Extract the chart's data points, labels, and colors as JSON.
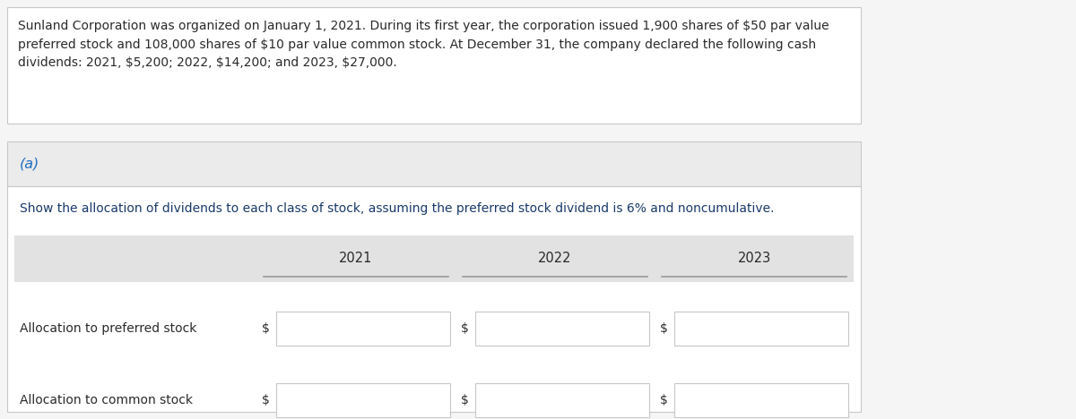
{
  "title_text": "Sunland Corporation was organized on January 1, 2021. During its first year, the corporation issued 1,900 shares of $50 par value\npreferred stock and 108,000 shares of $10 par value common stock. At December 31, the company declared the following cash\ndividends: 2021, $5,200; 2022, $14,200; and 2023, $27,000.",
  "part_label": "(a)",
  "instruction": "Show the allocation of dividends to each class of stock, assuming the preferred stock dividend is 6% and noncumulative.",
  "years": [
    "2021",
    "2022",
    "2023"
  ],
  "row_labels": [
    "Allocation to preferred stock",
    "Allocation to common stock"
  ],
  "dollar_sign": "$",
  "bg_color_outer": "#f5f5f5",
  "bg_color_white": "#ffffff",
  "bg_color_gray_section": "#ebebeb",
  "bg_color_table_header": "#e2e2e2",
  "text_color_dark": "#2a2a2a",
  "text_color_blue": "#2070c0",
  "text_color_instruction": "#1a3a6a",
  "border_color": "#c8c8c8",
  "border_color_dark": "#999999",
  "title_fontsize": 10.0,
  "label_fontsize": 10.0,
  "part_fontsize": 11.5,
  "instruction_fontsize": 10.0,
  "header_fontsize": 10.5,
  "fig_width": 12.0,
  "fig_height": 4.68
}
